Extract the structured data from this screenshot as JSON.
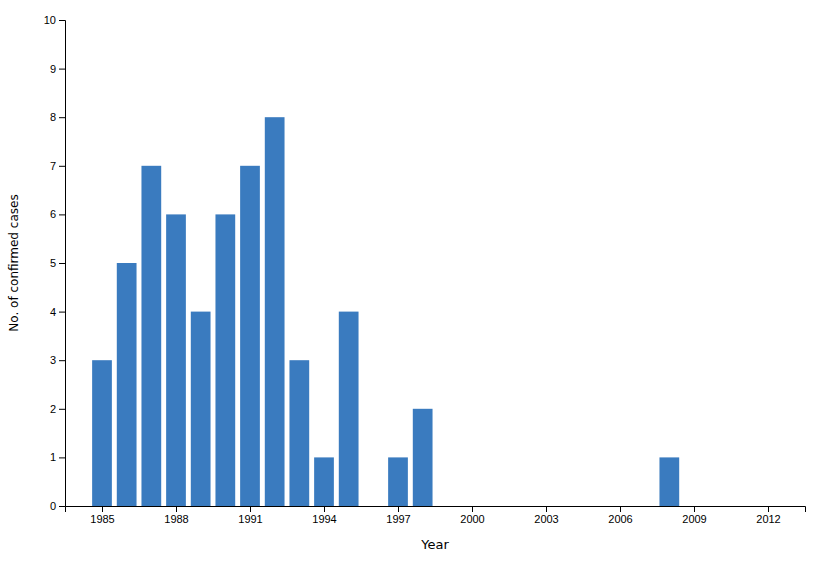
{
  "chart_data": {
    "type": "bar",
    "x": [
      1985,
      1986,
      1987,
      1988,
      1989,
      1990,
      1991,
      1992,
      1993,
      1994,
      1995,
      1997,
      1998,
      2008
    ],
    "values": [
      3,
      5,
      7,
      6,
      4,
      6,
      7,
      8,
      3,
      1,
      4,
      1,
      2,
      1
    ],
    "color": "#3a7bbf",
    "xlabel": "Year",
    "ylabel": "No. of confirmed cases",
    "xlim": [
      1983.5,
      2013.5
    ],
    "ylim": [
      0,
      10
    ],
    "xticks": [
      1985,
      1988,
      1991,
      1994,
      1997,
      2000,
      2003,
      2006,
      2009,
      2012
    ],
    "yticks": [
      0,
      1,
      2,
      3,
      4,
      5,
      6,
      7,
      8,
      9,
      10
    ],
    "grid": false
  }
}
